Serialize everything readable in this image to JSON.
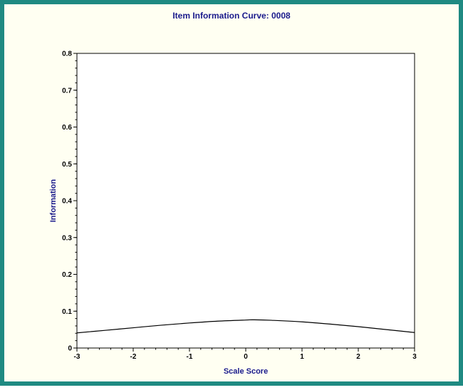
{
  "colors": {
    "frame_border": "#1f8a82",
    "frame_background": "#fffff2",
    "plot_background": "#ffffff",
    "title_color": "#1a1a8c",
    "curve_color": "#000000"
  },
  "chart_data": {
    "type": "line",
    "title": "Item Information Curve: 0008",
    "xlabel": "Scale Score",
    "ylabel": "Information",
    "xlim": [
      -3,
      3
    ],
    "ylim": [
      0,
      0.8
    ],
    "xticks": [
      "-3",
      "-2",
      "-1",
      "0",
      "1",
      "2",
      "3"
    ],
    "yticks": [
      "0",
      "0.1",
      "0.2",
      "0.3",
      "0.4",
      "0.5",
      "0.6",
      "0.7",
      "0.8"
    ],
    "grid": false,
    "series": [
      {
        "x": [
          -3,
          -2.5,
          -2,
          -1.5,
          -1,
          -0.5,
          0,
          0.15,
          0.5,
          1,
          1.5,
          2,
          2.5,
          3
        ],
        "y": [
          0.041,
          0.048,
          0.055,
          0.062,
          0.068,
          0.073,
          0.076,
          0.0765,
          0.075,
          0.071,
          0.065,
          0.058,
          0.05,
          0.042
        ]
      }
    ]
  }
}
